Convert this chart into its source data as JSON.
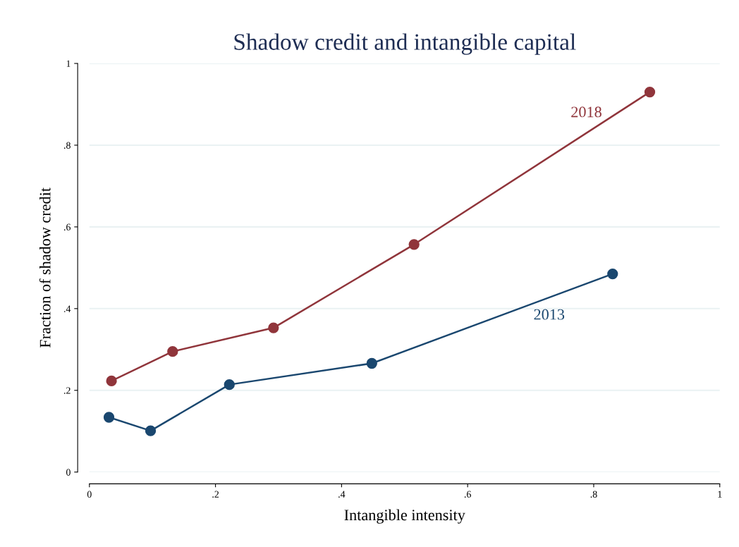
{
  "chart_data": {
    "type": "line",
    "title": "Shadow credit and intangible capital",
    "xlabel": "Intangible intensity",
    "ylabel": "Fraction of shadow credit",
    "series": [
      {
        "name": "2018",
        "color": "#90353b",
        "x": [
          0.035,
          0.132,
          0.292,
          0.515,
          0.889
        ],
        "values": [
          0.223,
          0.295,
          0.353,
          0.557,
          0.93
        ]
      },
      {
        "name": "2013",
        "color": "#1a476f",
        "x": [
          0.031,
          0.097,
          0.222,
          0.448,
          0.83
        ],
        "values": [
          0.134,
          0.101,
          0.214,
          0.266,
          0.485
        ]
      }
    ],
    "xlim": [
      0,
      1
    ],
    "ylim": [
      0,
      1
    ],
    "xticks": [
      0,
      {
        "value": 0.2,
        "label": ".2"
      },
      {
        "value": 0.4,
        "label": ".4"
      },
      {
        "value": 0.6,
        "label": ".6"
      },
      {
        "value": 0.8,
        "label": ".8"
      },
      1
    ],
    "yticks": [
      0,
      {
        "value": 0.2,
        "label": ".2"
      },
      {
        "value": 0.4,
        "label": ".4"
      },
      {
        "value": 0.6,
        "label": ".6"
      },
      {
        "value": 0.8,
        "label": ".8"
      },
      1
    ],
    "grid": "y",
    "marker": "circle",
    "line_style": "solid",
    "legend": false
  }
}
